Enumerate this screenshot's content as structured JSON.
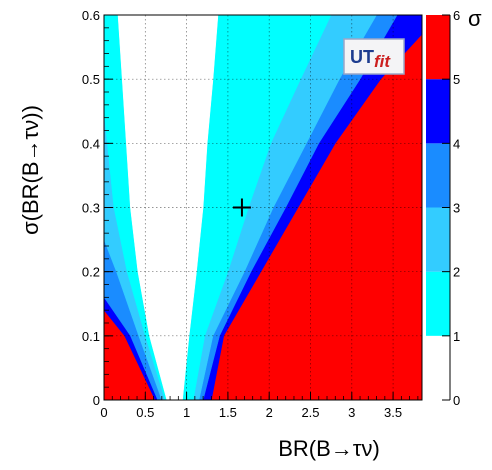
{
  "chart_data": {
    "type": "heatmap",
    "title": "",
    "xlabel": "BR(B→τν)",
    "ylabel": "σ(BR(B→τν))",
    "xlim": [
      0,
      3.85
    ],
    "ylim": [
      0,
      0.6
    ],
    "x_ticks": [
      "0",
      "0.5",
      "1",
      "1.5",
      "2",
      "2.5",
      "3",
      "3.5"
    ],
    "x_tick_values": [
      0,
      0.5,
      1,
      1.5,
      2,
      2.5,
      3,
      3.5
    ],
    "y_ticks": [
      "0",
      "0.1",
      "0.2",
      "0.3",
      "0.4",
      "0.5",
      "0.6"
    ],
    "y_tick_values": [
      0,
      0.1,
      0.2,
      0.3,
      0.4,
      0.5,
      0.6
    ],
    "grid": true,
    "colorbar": {
      "label": "σ",
      "range": [
        0,
        6
      ],
      "ticks": [
        "0",
        "1",
        "2",
        "3",
        "4",
        "5",
        "6"
      ],
      "tick_values": [
        0,
        1,
        2,
        3,
        4,
        5,
        6
      ],
      "bands": [
        {
          "from": 0,
          "to": 1,
          "color": "#ffffff"
        },
        {
          "from": 1,
          "to": 2,
          "color": "#00ffff"
        },
        {
          "from": 2,
          "to": 3,
          "color": "#33ccff"
        },
        {
          "from": 3,
          "to": 4,
          "color": "#1a8cff"
        },
        {
          "from": 4,
          "to": 5,
          "color": "#0000ff"
        },
        {
          "from": 5,
          "to": 6,
          "color": "#ff0000"
        }
      ]
    },
    "center": 0.85,
    "slope_per_sigma": 0.15,
    "left_boundaries": [
      {
        "sigma": 1,
        "points": [
          [
            0.76,
            0
          ],
          [
            0.55,
            0.1
          ],
          [
            0.41,
            0.2
          ],
          [
            0.32,
            0.3
          ],
          [
            0.27,
            0.4
          ],
          [
            0.22,
            0.5
          ],
          [
            0.17,
            0.6
          ]
        ]
      },
      {
        "sigma": 2,
        "points": [
          [
            0.74,
            0
          ],
          [
            0.5,
            0.1
          ],
          [
            0.28,
            0.2
          ],
          [
            0.12,
            0.3
          ],
          [
            0.04,
            0.4
          ],
          [
            0.0,
            0.45
          ]
        ]
      },
      {
        "sigma": 3,
        "points": [
          [
            0.7,
            0
          ],
          [
            0.42,
            0.1
          ],
          [
            0.15,
            0.2
          ],
          [
            0.0,
            0.25
          ]
        ]
      },
      {
        "sigma": 4,
        "points": [
          [
            0.65,
            0
          ],
          [
            0.32,
            0.1
          ],
          [
            0.0,
            0.16
          ]
        ]
      },
      {
        "sigma": 5,
        "points": [
          [
            0.62,
            0
          ],
          [
            0.25,
            0.1
          ],
          [
            0.0,
            0.14
          ]
        ]
      }
    ],
    "right_boundaries": [
      {
        "sigma": 1,
        "points": [
          [
            0.95,
            0
          ],
          [
            1.03,
            0.1
          ],
          [
            1.12,
            0.2
          ],
          [
            1.2,
            0.3
          ],
          [
            1.25,
            0.4
          ],
          [
            1.32,
            0.5
          ],
          [
            1.38,
            0.6
          ]
        ]
      },
      {
        "sigma": 2,
        "points": [
          [
            1.08,
            0
          ],
          [
            1.22,
            0.1
          ],
          [
            1.5,
            0.2
          ],
          [
            1.75,
            0.3
          ],
          [
            2.02,
            0.4
          ],
          [
            2.38,
            0.5
          ],
          [
            2.75,
            0.6
          ]
        ]
      },
      {
        "sigma": 3,
        "points": [
          [
            1.15,
            0
          ],
          [
            1.32,
            0.1
          ],
          [
            1.7,
            0.2
          ],
          [
            2.05,
            0.3
          ],
          [
            2.45,
            0.4
          ],
          [
            2.85,
            0.5
          ],
          [
            3.3,
            0.6
          ]
        ]
      },
      {
        "sigma": 4,
        "points": [
          [
            1.2,
            0
          ],
          [
            1.4,
            0.1
          ],
          [
            1.78,
            0.2
          ],
          [
            2.2,
            0.3
          ],
          [
            2.6,
            0.4
          ],
          [
            3.1,
            0.5
          ],
          [
            3.55,
            0.6
          ]
        ]
      },
      {
        "sigma": 5,
        "points": [
          [
            1.3,
            0
          ],
          [
            1.45,
            0.1
          ],
          [
            1.9,
            0.2
          ],
          [
            2.35,
            0.3
          ],
          [
            2.8,
            0.4
          ],
          [
            3.35,
            0.5
          ],
          [
            3.85,
            0.57
          ]
        ]
      }
    ],
    "marker": {
      "x": 1.67,
      "y": 0.3,
      "symbol": "+"
    },
    "logo": {
      "main": "UT",
      "sub": "fit"
    }
  }
}
